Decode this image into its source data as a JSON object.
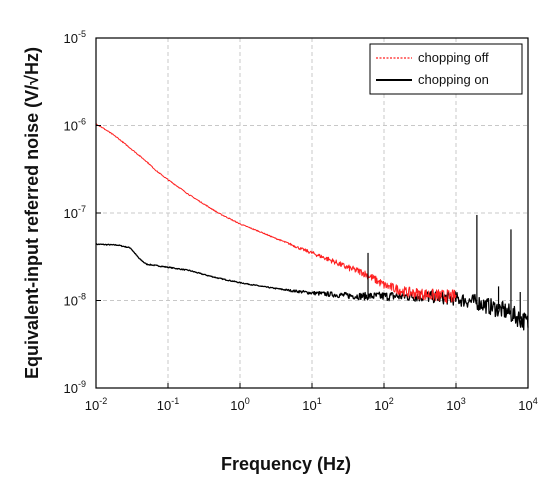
{
  "chart_data": {
    "type": "line",
    "xlabel": "Frequency (Hz)",
    "ylabel": "Equivalent-input referred noise (V/√Hz)",
    "xscale": "log",
    "yscale": "log",
    "xlim": [
      0.01,
      10000
    ],
    "ylim": [
      1e-09,
      1e-05
    ],
    "grid": true,
    "legend_position": "top-right",
    "x_ticks": [
      {
        "value": 0.01,
        "base": "10",
        "exp": "-2"
      },
      {
        "value": 0.1,
        "base": "10",
        "exp": "-1"
      },
      {
        "value": 1,
        "base": "10",
        "exp": "0"
      },
      {
        "value": 10,
        "base": "10",
        "exp": "1"
      },
      {
        "value": 100,
        "base": "10",
        "exp": "2"
      },
      {
        "value": 1000,
        "base": "10",
        "exp": "3"
      },
      {
        "value": 10000,
        "base": "10",
        "exp": "4"
      }
    ],
    "y_ticks": [
      {
        "value": 1e-09,
        "base": "10",
        "exp": "-9"
      },
      {
        "value": 1e-08,
        "base": "10",
        "exp": "-8"
      },
      {
        "value": 1e-07,
        "base": "10",
        "exp": "-7"
      },
      {
        "value": 1e-06,
        "base": "10",
        "exp": "-6"
      },
      {
        "value": 1e-05,
        "base": "10",
        "exp": "-5"
      }
    ],
    "series": [
      {
        "name": "chopping off",
        "color": "#ff2020",
        "style": "line",
        "x": [
          0.01,
          0.015,
          0.02,
          0.03,
          0.05,
          0.07,
          0.1,
          0.15,
          0.2,
          0.3,
          0.5,
          0.7,
          1,
          2,
          3,
          5,
          7,
          10,
          20,
          30,
          50,
          70,
          100,
          150,
          200,
          300,
          500,
          700,
          1000
        ],
        "y": [
          1.05e-06,
          8.5e-07,
          7.2e-07,
          5.5e-07,
          3.9e-07,
          3e-07,
          2.4e-07,
          1.9e-07,
          1.6e-07,
          1.3e-07,
          1e-07,
          8.7e-08,
          7.5e-08,
          6e-08,
          5.2e-08,
          4.4e-08,
          3.9e-08,
          3.5e-08,
          2.8e-08,
          2.4e-08,
          2.1e-08,
          1.8e-08,
          1.5e-08,
          1.35e-08,
          1.25e-08,
          1.2e-08,
          1.15e-08,
          1.12e-08,
          1.1e-08
        ]
      },
      {
        "name": "chopping on",
        "color": "#000000",
        "style": "line",
        "x": [
          0.01,
          0.02,
          0.03,
          0.04,
          0.05,
          0.07,
          0.1,
          0.2,
          0.3,
          0.5,
          1,
          2,
          3,
          5,
          10,
          20,
          30,
          50,
          100,
          200,
          300,
          500,
          1000,
          2000,
          3000,
          5000,
          7000,
          10000
        ],
        "y": [
          4.4e-08,
          4.3e-08,
          4e-08,
          3e-08,
          2.6e-08,
          2.5e-08,
          2.4e-08,
          2.2e-08,
          2e-08,
          1.8e-08,
          1.6e-08,
          1.45e-08,
          1.38e-08,
          1.3e-08,
          1.22e-08,
          1.17e-08,
          1.14e-08,
          1.12e-08,
          1.12e-08,
          1.12e-08,
          1.12e-08,
          1.1e-08,
          1.05e-08,
          9.5e-09,
          8.5e-09,
          7.5e-09,
          6.5e-09,
          5.5e-09
        ]
      }
    ],
    "spikes": [
      {
        "series": "chopping on",
        "x": 60,
        "y": 3.5e-08
      },
      {
        "series": "chopping on",
        "x": 1950,
        "y": 9.5e-08
      },
      {
        "series": "chopping on",
        "x": 3900,
        "y": 1.45e-08
      },
      {
        "series": "chopping on",
        "x": 5800,
        "y": 6.5e-08
      },
      {
        "series": "chopping on",
        "x": 7800,
        "y": 1.25e-08
      }
    ]
  }
}
